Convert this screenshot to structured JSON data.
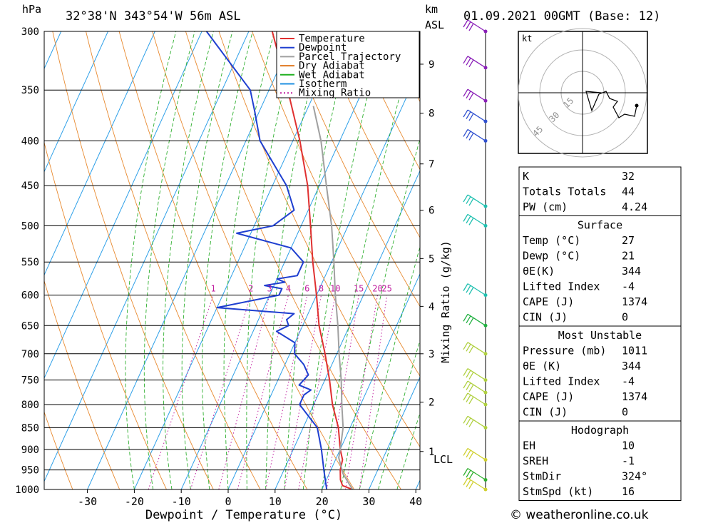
{
  "header": {
    "pressure_unit": "hPa",
    "location": "32°38'N  343°54'W  56m  ASL",
    "height_unit": "km",
    "height_ref": "ASL",
    "datetime": "01.09.2021  00GMT  (Base: 12)"
  },
  "chart_data": {
    "type": "line",
    "title": "",
    "xlabel": "Dewpoint / Temperature (°C)",
    "ylabel": "hPa",
    "xlim": [
      -40,
      40
    ],
    "x_ticks": [
      -30,
      -20,
      -10,
      0,
      10,
      20,
      30,
      40
    ],
    "pressure_levels": [
      300,
      350,
      400,
      450,
      500,
      550,
      600,
      650,
      700,
      750,
      800,
      850,
      900,
      950,
      1000
    ],
    "height_ticks_km": [
      "1",
      "2",
      "3",
      "4",
      "5",
      "6",
      "7",
      "8",
      "9"
    ],
    "lcl_label": "LCL",
    "mixing_ratio_label": "Mixing Ratio (g/kg)",
    "mixing_ratio_values": [
      "1",
      "2",
      "3",
      "4",
      "6",
      "8",
      "10",
      "15",
      "20",
      "25"
    ],
    "legend": [
      {
        "name": "Temperature",
        "color": "#e03030",
        "style": "solid"
      },
      {
        "name": "Dewpoint",
        "color": "#1f3fd0",
        "style": "solid"
      },
      {
        "name": "Parcel Trajectory",
        "color": "#a0a0a0",
        "style": "solid"
      },
      {
        "name": "Dry Adiabat",
        "color": "#e07820",
        "style": "solid"
      },
      {
        "name": "Wet Adiabat",
        "color": "#20b020",
        "style": "solid"
      },
      {
        "name": "Isotherm",
        "color": "#2090e0",
        "style": "solid"
      },
      {
        "name": "Mixing Ratio",
        "color": "#c020a0",
        "style": "dotted"
      }
    ],
    "series": [
      {
        "name": "Temperature",
        "color": "#e03030",
        "points": [
          [
            1000,
            26.5
          ],
          [
            990,
            24
          ],
          [
            975,
            23
          ],
          [
            950,
            22
          ],
          [
            925,
            21.5
          ],
          [
            900,
            20
          ],
          [
            850,
            17.5
          ],
          [
            800,
            14
          ],
          [
            750,
            11
          ],
          [
            700,
            7.5
          ],
          [
            650,
            3.5
          ],
          [
            600,
            0
          ],
          [
            550,
            -4
          ],
          [
            500,
            -8
          ],
          [
            450,
            -12.5
          ],
          [
            400,
            -18.5
          ],
          [
            350,
            -26
          ],
          [
            300,
            -35
          ]
        ]
      },
      {
        "name": "Dewpoint",
        "color": "#1f3fd0",
        "points": [
          [
            1000,
            21
          ],
          [
            950,
            18.5
          ],
          [
            900,
            16
          ],
          [
            850,
            13
          ],
          [
            800,
            7
          ],
          [
            780,
            7
          ],
          [
            770,
            8
          ],
          [
            760,
            5
          ],
          [
            740,
            6
          ],
          [
            720,
            4
          ],
          [
            700,
            1
          ],
          [
            680,
            0
          ],
          [
            660,
            -5
          ],
          [
            650,
            -3
          ],
          [
            640,
            -4
          ],
          [
            630,
            -3
          ],
          [
            620,
            -20
          ],
          [
            600,
            -8
          ],
          [
            590,
            -8
          ],
          [
            585,
            -12
          ],
          [
            580,
            -8
          ],
          [
            575,
            -10
          ],
          [
            570,
            -6
          ],
          [
            550,
            -6
          ],
          [
            530,
            -10
          ],
          [
            510,
            -23
          ],
          [
            500,
            -16
          ],
          [
            480,
            -13
          ],
          [
            450,
            -17
          ],
          [
            400,
            -27
          ],
          [
            370,
            -31
          ],
          [
            350,
            -34
          ],
          [
            300,
            -49
          ]
        ]
      },
      {
        "name": "Parcel Trajectory",
        "color": "#a0a0a0",
        "points": [
          [
            1000,
            26.5
          ],
          [
            960,
            23
          ],
          [
            920,
            20.5
          ],
          [
            900,
            20
          ],
          [
            850,
            18.5
          ],
          [
            800,
            16
          ],
          [
            750,
            13.5
          ],
          [
            700,
            10.5
          ],
          [
            650,
            7.5
          ],
          [
            600,
            4
          ],
          [
            550,
            0.5
          ],
          [
            500,
            -3.5
          ],
          [
            450,
            -8.5
          ],
          [
            400,
            -14
          ],
          [
            365,
            -19
          ]
        ]
      }
    ]
  },
  "winds": [
    {
      "pressure": 300,
      "color": "#8a1fb8"
    },
    {
      "pressure": 330,
      "color": "#8a1fb8"
    },
    {
      "pressure": 360,
      "color": "#8a1fb8"
    },
    {
      "pressure": 380,
      "color": "#3050d0"
    },
    {
      "pressure": 400,
      "color": "#3050d0"
    },
    {
      "pressure": 475,
      "color": "#20c0b0"
    },
    {
      "pressure": 500,
      "color": "#20c0b0"
    },
    {
      "pressure": 600,
      "color": "#20c0b0"
    },
    {
      "pressure": 650,
      "color": "#20b040"
    },
    {
      "pressure": 700,
      "color": "#b0d040"
    },
    {
      "pressure": 750,
      "color": "#b0d040"
    },
    {
      "pressure": 775,
      "color": "#b0d040"
    },
    {
      "pressure": 800,
      "color": "#b0d040"
    },
    {
      "pressure": 850,
      "color": "#b0d040"
    },
    {
      "pressure": 925,
      "color": "#d0d030"
    },
    {
      "pressure": 975,
      "color": "#30b030"
    },
    {
      "pressure": 1000,
      "color": "#d0d030"
    }
  ],
  "hodograph": {
    "unit_label": "kt",
    "ring_labels": [
      "15",
      "30",
      "45"
    ]
  },
  "indices": {
    "general": [
      {
        "label": "K",
        "value": "32"
      },
      {
        "label": "Totals Totals",
        "value": "44"
      },
      {
        "label": "PW (cm)",
        "value": "4.24"
      }
    ],
    "surface_title": "Surface",
    "surface": [
      {
        "label": "Temp (°C)",
        "value": "27"
      },
      {
        "label": "Dewp (°C)",
        "value": "21"
      },
      {
        "label": "θE(K)",
        "value": "344"
      },
      {
        "label": "Lifted Index",
        "value": "-4"
      },
      {
        "label": "CAPE (J)",
        "value": "1374"
      },
      {
        "label": "CIN (J)",
        "value": "0"
      }
    ],
    "unstable_title": "Most Unstable",
    "unstable": [
      {
        "label": "Pressure (mb)",
        "value": "1011"
      },
      {
        "label": "θE (K)",
        "value": "344"
      },
      {
        "label": "Lifted Index",
        "value": "-4"
      },
      {
        "label": "CAPE (J)",
        "value": "1374"
      },
      {
        "label": "CIN (J)",
        "value": "0"
      }
    ],
    "hodo_title": "Hodograph",
    "hodo": [
      {
        "label": "EH",
        "value": "10"
      },
      {
        "label": "SREH",
        "value": "-1"
      },
      {
        "label": "StmDir",
        "value": "324°"
      },
      {
        "label": "StmSpd (kt)",
        "value": "16"
      }
    ]
  },
  "footer": {
    "copyright": "© weatheronline.co.uk"
  }
}
